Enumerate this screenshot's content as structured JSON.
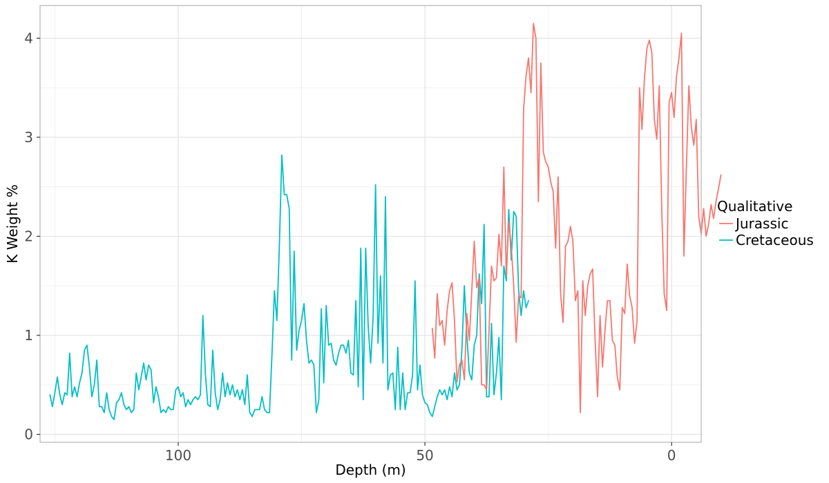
{
  "chart_data": {
    "type": "line",
    "xlabel": "Depth (m)",
    "ylabel": "K Weight %",
    "xlim": [
      128,
      -6
    ],
    "ylim": [
      -0.08,
      4.33
    ],
    "x_reversed": true,
    "xticks": [
      100,
      50,
      0
    ],
    "yticks": [
      0,
      1,
      2,
      3,
      4
    ],
    "grid": true,
    "legend": {
      "title": "Qualitative",
      "position": "right",
      "entries": [
        "Jurassic",
        "Cretaceous"
      ]
    },
    "colors": {
      "Jurassic": "#F8766D",
      "Cretaceous": "#00BFC4"
    },
    "series": [
      {
        "name": "Cretaceous",
        "color": "#00BFC4",
        "points": [
          [
            126.0,
            0.4
          ],
          [
            125.5,
            0.28
          ],
          [
            125.0,
            0.42
          ],
          [
            124.5,
            0.58
          ],
          [
            124.0,
            0.4
          ],
          [
            123.5,
            0.3
          ],
          [
            123.0,
            0.42
          ],
          [
            122.5,
            0.4
          ],
          [
            122.0,
            0.82
          ],
          [
            121.5,
            0.38
          ],
          [
            121.0,
            0.48
          ],
          [
            120.5,
            0.38
          ],
          [
            120.0,
            0.52
          ],
          [
            119.5,
            0.62
          ],
          [
            119.0,
            0.85
          ],
          [
            118.5,
            0.9
          ],
          [
            118.0,
            0.68
          ],
          [
            117.5,
            0.38
          ],
          [
            117.0,
            0.5
          ],
          [
            116.5,
            0.75
          ],
          [
            116.0,
            0.28
          ],
          [
            115.5,
            0.28
          ],
          [
            115.0,
            0.22
          ],
          [
            114.5,
            0.42
          ],
          [
            114.0,
            0.25
          ],
          [
            113.5,
            0.18
          ],
          [
            113.0,
            0.15
          ],
          [
            112.5,
            0.32
          ],
          [
            112.0,
            0.35
          ],
          [
            111.5,
            0.42
          ],
          [
            111.0,
            0.3
          ],
          [
            110.5,
            0.25
          ],
          [
            110.0,
            0.28
          ],
          [
            109.5,
            0.22
          ],
          [
            109.0,
            0.25
          ],
          [
            108.5,
            0.62
          ],
          [
            108.0,
            0.45
          ],
          [
            107.5,
            0.58
          ],
          [
            107.0,
            0.72
          ],
          [
            106.5,
            0.55
          ],
          [
            106.0,
            0.7
          ],
          [
            105.5,
            0.65
          ],
          [
            105.0,
            0.32
          ],
          [
            104.5,
            0.48
          ],
          [
            104.0,
            0.38
          ],
          [
            103.5,
            0.22
          ],
          [
            103.0,
            0.25
          ],
          [
            102.5,
            0.22
          ],
          [
            102.0,
            0.28
          ],
          [
            101.5,
            0.25
          ],
          [
            101.0,
            0.25
          ],
          [
            100.5,
            0.45
          ],
          [
            100.0,
            0.48
          ],
          [
            99.5,
            0.38
          ],
          [
            99.0,
            0.42
          ],
          [
            98.5,
            0.28
          ],
          [
            98.0,
            0.35
          ],
          [
            97.5,
            0.3
          ],
          [
            97.0,
            0.35
          ],
          [
            96.5,
            0.38
          ],
          [
            96.0,
            0.35
          ],
          [
            95.5,
            0.4
          ],
          [
            95.0,
            1.2
          ],
          [
            94.5,
            0.62
          ],
          [
            94.0,
            0.3
          ],
          [
            93.5,
            0.28
          ],
          [
            93.0,
            0.85
          ],
          [
            92.5,
            0.42
          ],
          [
            92.0,
            0.25
          ],
          [
            91.5,
            0.35
          ],
          [
            91.0,
            0.62
          ],
          [
            90.5,
            0.38
          ],
          [
            90.0,
            0.52
          ],
          [
            89.5,
            0.4
          ],
          [
            89.0,
            0.5
          ],
          [
            88.5,
            0.38
          ],
          [
            88.0,
            0.45
          ],
          [
            87.5,
            0.35
          ],
          [
            87.0,
            0.45
          ],
          [
            86.5,
            0.3
          ],
          [
            86.0,
            0.6
          ],
          [
            85.5,
            0.22
          ],
          [
            85.0,
            0.18
          ],
          [
            84.5,
            0.25
          ],
          [
            84.0,
            0.25
          ],
          [
            83.5,
            0.25
          ],
          [
            83.0,
            0.38
          ],
          [
            82.5,
            0.25
          ],
          [
            82.0,
            0.22
          ],
          [
            81.5,
            0.22
          ],
          [
            81.0,
            0.8
          ],
          [
            80.5,
            1.45
          ],
          [
            80.0,
            1.15
          ],
          [
            79.5,
            1.9
          ],
          [
            79.0,
            2.82
          ],
          [
            78.5,
            2.42
          ],
          [
            78.0,
            2.42
          ],
          [
            77.5,
            2.28
          ],
          [
            77.0,
            0.75
          ],
          [
            76.5,
            1.85
          ],
          [
            76.0,
            0.85
          ],
          [
            75.5,
            1.05
          ],
          [
            75.0,
            1.15
          ],
          [
            74.5,
            1.32
          ],
          [
            74.0,
            0.95
          ],
          [
            73.5,
            0.72
          ],
          [
            73.0,
            0.75
          ],
          [
            72.5,
            0.7
          ],
          [
            72.0,
            0.22
          ],
          [
            71.5,
            0.35
          ],
          [
            71.0,
            1.27
          ],
          [
            70.5,
            0.52
          ],
          [
            70.0,
            1.3
          ],
          [
            69.5,
            0.9
          ],
          [
            69.0,
            0.92
          ],
          [
            68.5,
            0.75
          ],
          [
            68.0,
            0.7
          ],
          [
            67.5,
            0.82
          ],
          [
            67.0,
            0.9
          ],
          [
            66.5,
            0.9
          ],
          [
            66.0,
            0.82
          ],
          [
            65.5,
            0.95
          ],
          [
            65.0,
            0.62
          ],
          [
            64.5,
            0.6
          ],
          [
            64.0,
            1.35
          ],
          [
            63.5,
            0.48
          ],
          [
            63.0,
            1.88
          ],
          [
            62.5,
            0.35
          ],
          [
            62.0,
            1.88
          ],
          [
            61.5,
            1.1
          ],
          [
            61.0,
            0.72
          ],
          [
            60.5,
            1.18
          ],
          [
            60.0,
            2.52
          ],
          [
            59.5,
            0.92
          ],
          [
            59.0,
            1.6
          ],
          [
            58.5,
            0.72
          ],
          [
            58.0,
            2.4
          ],
          [
            57.5,
            0.45
          ],
          [
            57.0,
            0.6
          ],
          [
            56.5,
            0.62
          ],
          [
            56.0,
            0.25
          ],
          [
            55.5,
            0.88
          ],
          [
            55.0,
            0.25
          ],
          [
            54.5,
            0.62
          ],
          [
            54.0,
            0.25
          ],
          [
            53.5,
            0.42
          ],
          [
            53.0,
            0.42
          ],
          [
            52.5,
            0.6
          ],
          [
            52.0,
            1.55
          ],
          [
            51.5,
            0.45
          ],
          [
            51.0,
            0.7
          ],
          [
            50.5,
            0.4
          ],
          [
            50.0,
            0.32
          ],
          [
            49.5,
            0.3
          ],
          [
            49.0,
            0.22
          ],
          [
            48.5,
            0.18
          ],
          [
            48.0,
            0.28
          ],
          [
            47.5,
            0.38
          ],
          [
            47.0,
            0.45
          ],
          [
            46.5,
            0.4
          ],
          [
            46.0,
            0.45
          ],
          [
            45.5,
            0.35
          ],
          [
            45.0,
            0.48
          ],
          [
            44.5,
            0.38
          ],
          [
            44.0,
            0.62
          ],
          [
            43.5,
            0.45
          ],
          [
            43.0,
            0.5
          ],
          [
            42.5,
            0.85
          ],
          [
            42.0,
            1.5
          ],
          [
            41.5,
            1.0
          ],
          [
            41.0,
            0.62
          ],
          [
            40.5,
            0.55
          ],
          [
            40.0,
            0.9
          ],
          [
            39.5,
            1.0
          ],
          [
            39.0,
            1.62
          ],
          [
            38.5,
            1.32
          ],
          [
            38.0,
            2.12
          ],
          [
            37.5,
            0.38
          ],
          [
            37.0,
            0.38
          ],
          [
            36.5,
            1.12
          ],
          [
            36.0,
            0.4
          ],
          [
            35.5,
            0.62
          ],
          [
            35.0,
            0.98
          ],
          [
            34.5,
            0.35
          ],
          [
            34.0,
            1.7
          ],
          [
            33.5,
            1.55
          ],
          [
            33.0,
            2.27
          ],
          [
            32.5,
            1.76
          ],
          [
            32.0,
            2.25
          ],
          [
            31.5,
            2.2
          ],
          [
            31.0,
            1.45
          ],
          [
            30.5,
            1.2
          ],
          [
            30.0,
            1.45
          ],
          [
            29.5,
            1.28
          ],
          [
            29.0,
            1.35
          ]
        ]
      },
      {
        "name": "Jurassic",
        "color": "#F8766D",
        "points": [
          [
            48.5,
            1.07
          ],
          [
            48.0,
            0.77
          ],
          [
            47.5,
            1.42
          ],
          [
            47.0,
            1.1
          ],
          [
            46.5,
            1.15
          ],
          [
            46.0,
            0.9
          ],
          [
            45.5,
            1.25
          ],
          [
            45.0,
            1.45
          ],
          [
            44.5,
            1.53
          ],
          [
            44.0,
            1.15
          ],
          [
            43.5,
            0.53
          ],
          [
            43.0,
            0.7
          ],
          [
            42.5,
            0.75
          ],
          [
            42.0,
            0.55
          ],
          [
            41.5,
            1.22
          ],
          [
            41.0,
            0.95
          ],
          [
            40.5,
            1.45
          ],
          [
            40.0,
            1.95
          ],
          [
            39.5,
            1.48
          ],
          [
            39.0,
            1.58
          ],
          [
            38.5,
            0.5
          ],
          [
            38.0,
            0.5
          ],
          [
            37.5,
            0.45
          ],
          [
            37.0,
            1.05
          ],
          [
            36.5,
            1.7
          ],
          [
            36.0,
            1.55
          ],
          [
            35.5,
            1.58
          ],
          [
            35.0,
            2.02
          ],
          [
            34.5,
            1.7
          ],
          [
            34.0,
            2.7
          ],
          [
            33.5,
            1.6
          ],
          [
            33.0,
            2.15
          ],
          [
            32.5,
            1.9
          ],
          [
            32.0,
            1.5
          ],
          [
            31.5,
            0.93
          ],
          [
            31.0,
            1.4
          ],
          [
            30.5,
            1.38
          ],
          [
            30.0,
            3.28
          ],
          [
            29.5,
            3.62
          ],
          [
            29.0,
            3.8
          ],
          [
            28.5,
            3.45
          ],
          [
            28.0,
            4.15
          ],
          [
            27.5,
            4.0
          ],
          [
            27.0,
            2.35
          ],
          [
            26.5,
            3.75
          ],
          [
            26.0,
            2.85
          ],
          [
            25.5,
            2.75
          ],
          [
            25.0,
            2.7
          ],
          [
            24.5,
            2.55
          ],
          [
            24.0,
            2.45
          ],
          [
            23.5,
            1.88
          ],
          [
            23.0,
            2.6
          ],
          [
            22.5,
            1.42
          ],
          [
            22.0,
            1.13
          ],
          [
            21.5,
            1.9
          ],
          [
            21.0,
            1.95
          ],
          [
            20.5,
            2.1
          ],
          [
            20.0,
            1.95
          ],
          [
            19.5,
            1.35
          ],
          [
            19.0,
            1.45
          ],
          [
            18.5,
            0.22
          ],
          [
            18.0,
            1.55
          ],
          [
            17.5,
            1.2
          ],
          [
            17.0,
            1.5
          ],
          [
            16.5,
            1.62
          ],
          [
            16.0,
            1.67
          ],
          [
            15.5,
            0.95
          ],
          [
            15.0,
            0.38
          ],
          [
            14.5,
            1.2
          ],
          [
            14.0,
            0.68
          ],
          [
            13.5,
            1.05
          ],
          [
            13.0,
            1.35
          ],
          [
            12.5,
            1.35
          ],
          [
            12.0,
            0.95
          ],
          [
            11.5,
            0.9
          ],
          [
            11.0,
            0.58
          ],
          [
            10.5,
            0.45
          ],
          [
            10.0,
            1.28
          ],
          [
            9.5,
            1.22
          ],
          [
            9.0,
            1.72
          ],
          [
            8.5,
            1.4
          ],
          [
            8.0,
            1.28
          ],
          [
            7.5,
            0.92
          ],
          [
            7.0,
            1.15
          ],
          [
            6.5,
            3.5
          ],
          [
            6.0,
            3.08
          ],
          [
            5.5,
            3.6
          ],
          [
            5.0,
            3.9
          ],
          [
            4.5,
            3.98
          ],
          [
            4.0,
            3.85
          ],
          [
            3.5,
            3.18
          ],
          [
            3.0,
            2.98
          ],
          [
            2.5,
            3.52
          ],
          [
            2.0,
            2.28
          ],
          [
            1.5,
            1.42
          ],
          [
            1.0,
            1.25
          ],
          [
            0.5,
            3.35
          ],
          [
            0.0,
            3.45
          ],
          [
            -0.5,
            3.2
          ],
          [
            -1.0,
            3.62
          ],
          [
            -1.5,
            3.8
          ],
          [
            -2.0,
            4.05
          ],
          [
            -2.5,
            1.8
          ],
          [
            -3.0,
            2.7
          ],
          [
            -3.5,
            3.52
          ],
          [
            -4.0,
            3.1
          ],
          [
            -4.5,
            2.92
          ],
          [
            -5.0,
            3.18
          ],
          [
            -5.5,
            2.2
          ],
          [
            -6.0,
            2.02
          ],
          [
            -6.5,
            2.28
          ],
          [
            -7.0,
            2.0
          ],
          [
            -7.5,
            2.12
          ],
          [
            -8.0,
            2.32
          ],
          [
            -8.5,
            2.18
          ],
          [
            -9.0,
            2.35
          ],
          [
            -9.5,
            2.48
          ],
          [
            -10.0,
            2.62
          ]
        ]
      }
    ]
  }
}
